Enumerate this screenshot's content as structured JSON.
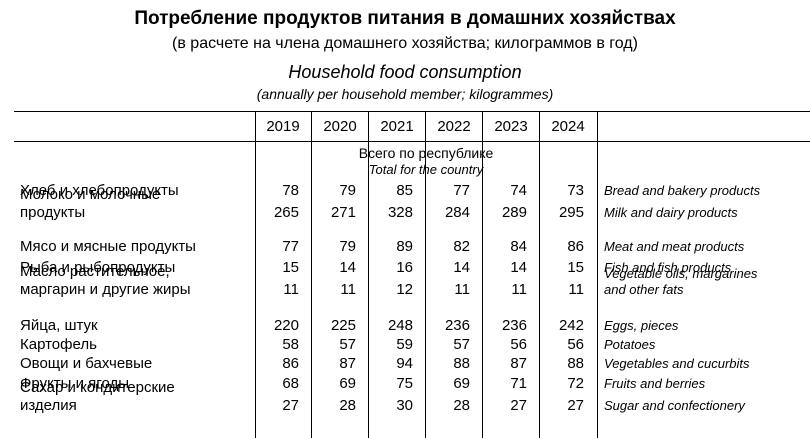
{
  "header": {
    "title": "Потребление продуктов питания в домашних хозяйствах",
    "subtitle": "(в расчете на члена домашнего хозяйства; килограммов в год)",
    "title_en": "Household food consumption",
    "subtitle_en": "(annually per household member; kilogrammes)"
  },
  "table": {
    "years": [
      "2019",
      "2020",
      "2021",
      "2022",
      "2023",
      "2024"
    ],
    "section": {
      "ru": "Всего по республике",
      "en": "Total for the country"
    },
    "rows": [
      {
        "ru": [
          "Хлеб и хлебопродукты"
        ],
        "en": [
          "Bread and bakery products"
        ],
        "values": [
          "78",
          "79",
          "85",
          "77",
          "74",
          "73"
        ]
      },
      {
        "ru": [
          "Молоко и молочные",
          "продукты"
        ],
        "en": [
          "Milk and dairy products"
        ],
        "values": [
          "265",
          "271",
          "328",
          "284",
          "289",
          "295"
        ]
      },
      {
        "ru": [
          "Мясо и мясные продукты"
        ],
        "en": [
          "Meat and meat products"
        ],
        "values": [
          "77",
          "79",
          "89",
          "82",
          "84",
          "86"
        ]
      },
      {
        "ru": [
          "Рыба и рыбопродукты"
        ],
        "en": [
          "Fish and fish products"
        ],
        "values": [
          "15",
          "14",
          "16",
          "14",
          "14",
          "15"
        ]
      },
      {
        "ru": [
          "Масло растительное,",
          "маргарин и другие жиры"
        ],
        "en": [
          "Vegetable oils, margarines",
          "and other fats"
        ],
        "values": [
          "11",
          "11",
          "12",
          "11",
          "11",
          "11"
        ]
      },
      {
        "ru": [
          "Яйца, штук"
        ],
        "en": [
          "Eggs, pieces"
        ],
        "values": [
          "220",
          "225",
          "248",
          "236",
          "236",
          "242"
        ]
      },
      {
        "ru": [
          "Картофель"
        ],
        "en": [
          "Potatoes"
        ],
        "values": [
          "58",
          "57",
          "59",
          "57",
          "56",
          "56"
        ]
      },
      {
        "ru": [
          "Овощи и бахчевые"
        ],
        "en": [
          "Vegetables and cucurbits"
        ],
        "values": [
          "86",
          "87",
          "94",
          "88",
          "87",
          "88"
        ]
      },
      {
        "ru": [
          "Фрукты и ягоды"
        ],
        "en": [
          "Fruits and berries"
        ],
        "values": [
          "68",
          "69",
          "75",
          "69",
          "71",
          "72"
        ]
      },
      {
        "ru": [
          "Сахар и кондитерские",
          "изделия"
        ],
        "en": [
          "Sugar and confectionery"
        ],
        "values": [
          "27",
          "28",
          "30",
          "28",
          "27",
          "27"
        ]
      }
    ]
  }
}
